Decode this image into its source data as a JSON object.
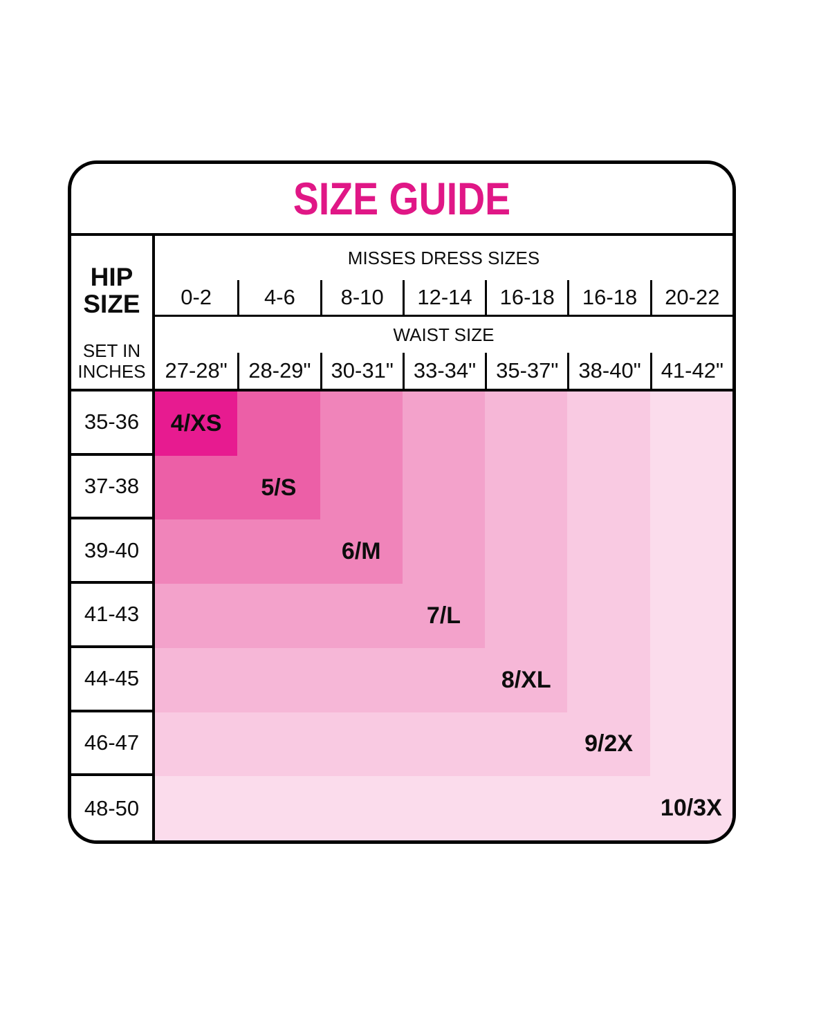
{
  "card": {
    "title": "SIZE GUIDE",
    "title_color": "#E01786",
    "border_color": "#000000"
  },
  "header": {
    "hip_label_line1": "HIP",
    "hip_label_line2": "SIZE",
    "hip_sub_line1": "SET IN",
    "hip_sub_line2": "INCHES",
    "dress_group_label": "MISSES DRESS SIZES",
    "dress_sizes": [
      "0-2",
      "4-6",
      "8-10",
      "12-14",
      "16-18",
      "16-18",
      "20-22"
    ],
    "waist_group_label": "WAIST SIZE",
    "waist_sizes": [
      "27-28\"",
      "28-29\"",
      "30-31\"",
      "33-34\"",
      "35-37\"",
      "38-40\"",
      "41-42\""
    ]
  },
  "body": {
    "hip_rows": [
      "35-36",
      "37-38",
      "39-40",
      "41-43",
      "44-45",
      "46-47",
      "48-50"
    ],
    "sizes": [
      {
        "label": "4/XS",
        "color": "#E71B90"
      },
      {
        "label": "5/S",
        "color": "#EC5FA7"
      },
      {
        "label": "6/M",
        "color": "#F084BA"
      },
      {
        "label": "7/L",
        "color": "#F3A2CB"
      },
      {
        "label": "8/XL",
        "color": "#F6B7D7"
      },
      {
        "label": "9/2X",
        "color": "#F9CAE2"
      },
      {
        "label": "10/3X",
        "color": "#FBDCEC"
      }
    ]
  },
  "chart_data": {
    "type": "table",
    "title": "SIZE GUIDE",
    "row_header_label": "HIP SIZE",
    "row_header_note": "SET IN INCHES",
    "column_groups": [
      {
        "label": "MISSES DRESS SIZES",
        "values": [
          "0-2",
          "4-6",
          "8-10",
          "12-14",
          "16-18",
          "16-18",
          "20-22"
        ]
      },
      {
        "label": "WAIST SIZE",
        "values": [
          "27-28\"",
          "28-29\"",
          "30-31\"",
          "33-34\"",
          "35-37\"",
          "38-40\"",
          "41-42\""
        ]
      }
    ],
    "rows": [
      "35-36",
      "37-38",
      "39-40",
      "41-43",
      "44-45",
      "46-47",
      "48-50"
    ],
    "sizes": [
      {
        "size": "4/XS",
        "hip": "35-36",
        "dress": "0-2",
        "waist": "27-28\""
      },
      {
        "size": "5/S",
        "hip": "37-38",
        "dress": "4-6",
        "waist": "28-29\""
      },
      {
        "size": "6/M",
        "hip": "39-40",
        "dress": "8-10",
        "waist": "30-31\""
      },
      {
        "size": "7/L",
        "hip": "41-43",
        "dress": "12-14",
        "waist": "33-34\""
      },
      {
        "size": "8/XL",
        "hip": "44-45",
        "dress": "16-18",
        "waist": "35-37\""
      },
      {
        "size": "9/2X",
        "hip": "46-47",
        "dress": "16-18",
        "waist": "38-40\""
      },
      {
        "size": "10/3X",
        "hip": "48-50",
        "dress": "20-22",
        "waist": "41-42\""
      }
    ],
    "layout_hints": {
      "cell_shading_rule": "cell color = shade of size index max(row, column); forms nested L-shaped bands, darkest pink at top-left (4/XS) to lightest at bottom-right (10/3X)",
      "diagonal_labels": true
    }
  }
}
